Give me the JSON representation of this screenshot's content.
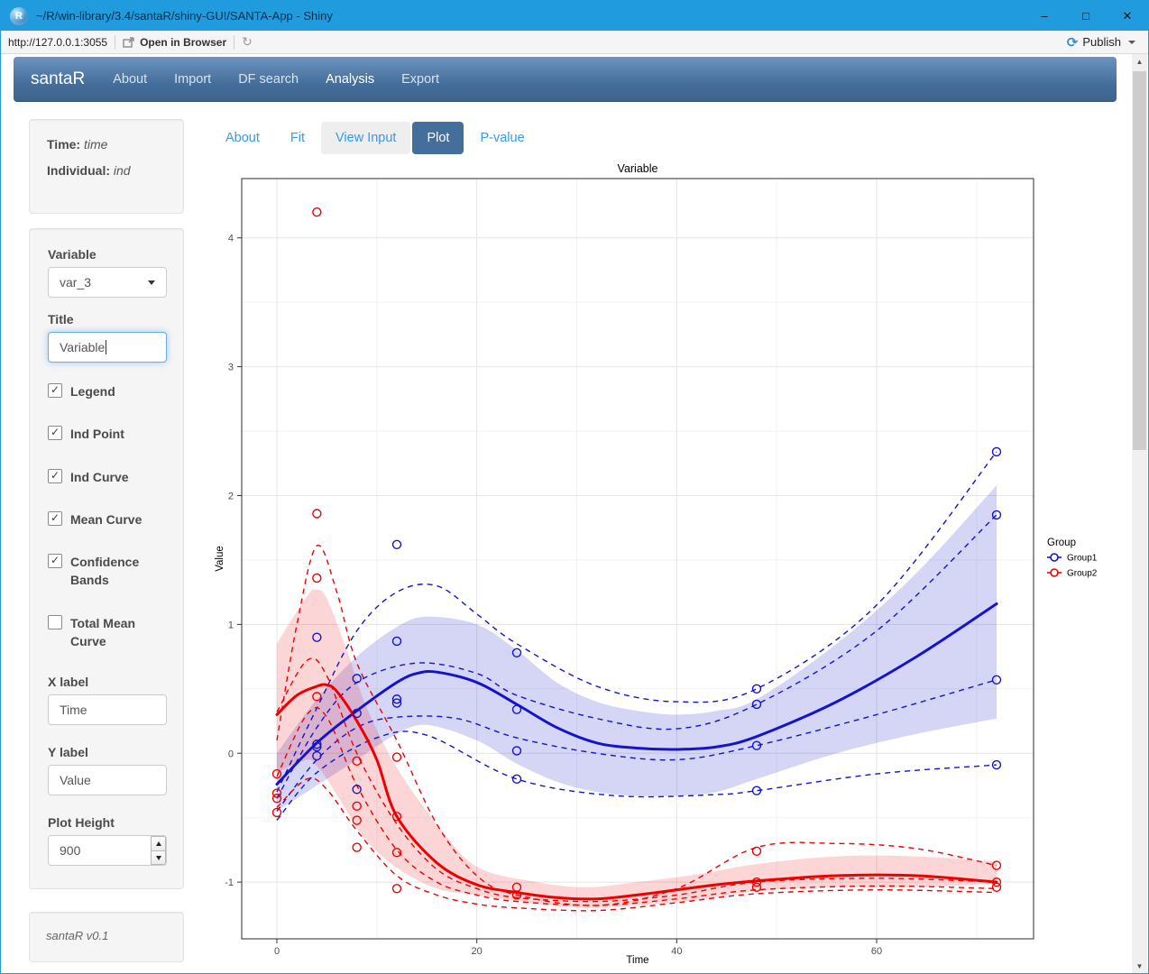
{
  "window": {
    "title": "~/R/win-library/3.4/santaR/shiny-GUI/SANTA-App - Shiny",
    "controls": {
      "minimize": "–",
      "maximize": "□",
      "close": "✕"
    }
  },
  "toolbar": {
    "url": "http://127.0.0.1:3055",
    "open_in_browser": "Open in Browser",
    "refresh_icon": "refresh-icon",
    "publish_label": "Publish"
  },
  "navbar": {
    "brand": "santaR",
    "items": [
      {
        "label": "About",
        "active": false
      },
      {
        "label": "Import",
        "active": false
      },
      {
        "label": "DF search",
        "active": false
      },
      {
        "label": "Analysis",
        "active": true
      },
      {
        "label": "Export",
        "active": false
      }
    ]
  },
  "sidebar": {
    "info": {
      "time_label": "Time:",
      "time_value": "time",
      "individual_label": "Individual:",
      "individual_value": "ind"
    },
    "variable": {
      "label": "Variable",
      "selected": "var_3"
    },
    "title_input": {
      "label": "Title",
      "value": "Variable"
    },
    "checkboxes": [
      {
        "label": "Legend",
        "checked": true
      },
      {
        "label": "Ind Point",
        "checked": true
      },
      {
        "label": "Ind Curve",
        "checked": true
      },
      {
        "label": "Mean Curve",
        "checked": true
      },
      {
        "label": "Confidence Bands",
        "checked": true
      },
      {
        "label": "Total Mean Curve",
        "checked": false
      }
    ],
    "xlabel_input": {
      "label": "X label",
      "value": "Time"
    },
    "ylabel_input": {
      "label": "Y label",
      "value": "Value"
    },
    "plot_height": {
      "label": "Plot Height",
      "value": "900"
    },
    "footer": "santaR v0.1"
  },
  "tabs": [
    {
      "label": "About",
      "active": false,
      "hover": false
    },
    {
      "label": "Fit",
      "active": false,
      "hover": false
    },
    {
      "label": "View Input",
      "active": false,
      "hover": true
    },
    {
      "label": "Plot",
      "active": true,
      "hover": false
    },
    {
      "label": "P-value",
      "active": false,
      "hover": false
    }
  ],
  "chart_data": {
    "type": "line",
    "title": "Variable",
    "xlabel": "Time",
    "ylabel": "Value",
    "xlim": [
      -3.52,
      75.7
    ],
    "ylim": [
      -1.44,
      4.46
    ],
    "xticks": [
      0,
      20,
      40,
      60
    ],
    "yticks": [
      -1,
      0,
      1,
      2,
      3,
      4
    ],
    "x_minor": [
      10,
      30,
      50,
      70
    ],
    "y_minor": [
      -0.5,
      0.5,
      1.5,
      2.5,
      3.5
    ],
    "grid": true,
    "legend": {
      "title": "Group",
      "position": "right",
      "entries": [
        {
          "label": "Group1",
          "color": "#1414cc"
        },
        {
          "label": "Group2",
          "color": "#ee0000"
        }
      ]
    },
    "groups": [
      {
        "name": "Group1",
        "color": "#1414cc",
        "band_opacity": 0.18,
        "mean": [
          [
            0,
            -0.24
          ],
          [
            4,
            0.08
          ],
          [
            8,
            0.33
          ],
          [
            12,
            0.55
          ],
          [
            14,
            0.62
          ],
          [
            16,
            0.63
          ],
          [
            20,
            0.55
          ],
          [
            24,
            0.38
          ],
          [
            28,
            0.2
          ],
          [
            32,
            0.08
          ],
          [
            36,
            0.04
          ],
          [
            40,
            0.03
          ],
          [
            44,
            0.05
          ],
          [
            48,
            0.13
          ],
          [
            56,
            0.4
          ],
          [
            64,
            0.75
          ],
          [
            72,
            1.16
          ]
        ],
        "band_upper": [
          [
            0,
            0.0
          ],
          [
            4,
            0.42
          ],
          [
            8,
            0.75
          ],
          [
            12,
            0.98
          ],
          [
            15,
            1.06
          ],
          [
            20,
            1.0
          ],
          [
            24,
            0.8
          ],
          [
            28,
            0.55
          ],
          [
            32,
            0.4
          ],
          [
            36,
            0.33
          ],
          [
            40,
            0.3
          ],
          [
            44,
            0.33
          ],
          [
            48,
            0.42
          ],
          [
            56,
            0.85
          ],
          [
            64,
            1.4
          ],
          [
            72,
            2.08
          ]
        ],
        "band_lower": [
          [
            0,
            -0.45
          ],
          [
            4,
            -0.25
          ],
          [
            8,
            -0.05
          ],
          [
            12,
            0.15
          ],
          [
            15,
            0.22
          ],
          [
            20,
            0.1
          ],
          [
            24,
            -0.08
          ],
          [
            28,
            -0.22
          ],
          [
            32,
            -0.3
          ],
          [
            36,
            -0.33
          ],
          [
            40,
            -0.33
          ],
          [
            44,
            -0.3
          ],
          [
            48,
            -0.2
          ],
          [
            56,
            0.0
          ],
          [
            64,
            0.15
          ],
          [
            72,
            0.27
          ]
        ],
        "individual_curves": [
          [
            [
              0,
              -0.3
            ],
            [
              4,
              0.35
            ],
            [
              8,
              0.95
            ],
            [
              12,
              1.25
            ],
            [
              16,
              1.3
            ],
            [
              20,
              1.08
            ],
            [
              24,
              0.85
            ],
            [
              32,
              0.52
            ],
            [
              40,
              0.4
            ],
            [
              48,
              0.5
            ],
            [
              60,
              1.15
            ],
            [
              72,
              2.34
            ]
          ],
          [
            [
              0,
              -0.35
            ],
            [
              4,
              0.2
            ],
            [
              8,
              0.55
            ],
            [
              14,
              0.7
            ],
            [
              20,
              0.62
            ],
            [
              24,
              0.45
            ],
            [
              32,
              0.27
            ],
            [
              40,
              0.19
            ],
            [
              48,
              0.38
            ],
            [
              60,
              0.95
            ],
            [
              72,
              1.85
            ]
          ],
          [
            [
              0,
              -0.45
            ],
            [
              4,
              -0.05
            ],
            [
              8,
              0.2
            ],
            [
              12,
              0.28
            ],
            [
              18,
              0.27
            ],
            [
              24,
              0.12
            ],
            [
              32,
              0.0
            ],
            [
              40,
              -0.05
            ],
            [
              48,
              0.06
            ],
            [
              60,
              0.3
            ],
            [
              72,
              0.57
            ]
          ],
          [
            [
              0,
              -0.52
            ],
            [
              4,
              -0.15
            ],
            [
              10,
              0.12
            ],
            [
              15,
              0.14
            ],
            [
              24,
              -0.2
            ],
            [
              34,
              -0.33
            ],
            [
              44,
              -0.32
            ],
            [
              48,
              -0.29
            ],
            [
              60,
              -0.16
            ],
            [
              72,
              -0.09
            ]
          ]
        ],
        "points": [
          [
            4,
            0.9
          ],
          [
            4,
            0.07
          ],
          [
            4,
            0.05
          ],
          [
            4,
            -0.02
          ],
          [
            8,
            0.58
          ],
          [
            8,
            0.31
          ],
          [
            8,
            -0.28
          ],
          [
            12,
            1.62
          ],
          [
            12,
            0.87
          ],
          [
            12,
            0.42
          ],
          [
            12,
            0.39
          ],
          [
            24,
            0.78
          ],
          [
            24,
            0.34
          ],
          [
            24,
            0.02
          ],
          [
            24,
            -0.2
          ],
          [
            48,
            0.5
          ],
          [
            48,
            0.38
          ],
          [
            48,
            0.06
          ],
          [
            48,
            -0.29
          ],
          [
            72,
            2.34
          ],
          [
            72,
            1.85
          ],
          [
            72,
            0.57
          ],
          [
            72,
            -0.09
          ]
        ]
      },
      {
        "name": "Group2",
        "color": "#ee0000",
        "band_opacity": 0.16,
        "mean": [
          [
            0,
            0.3
          ],
          [
            2,
            0.45
          ],
          [
            4,
            0.52
          ],
          [
            5,
            0.53
          ],
          [
            6,
            0.48
          ],
          [
            8,
            0.25
          ],
          [
            10,
            -0.05
          ],
          [
            12,
            -0.49
          ],
          [
            16,
            -0.85
          ],
          [
            20,
            -1.02
          ],
          [
            24,
            -1.08
          ],
          [
            28,
            -1.12
          ],
          [
            32,
            -1.13
          ],
          [
            36,
            -1.1
          ],
          [
            40,
            -1.06
          ],
          [
            44,
            -1.02
          ],
          [
            48,
            -0.99
          ],
          [
            56,
            -0.95
          ],
          [
            64,
            -0.95
          ],
          [
            72,
            -1.0
          ]
        ],
        "band_upper": [
          [
            0,
            0.85
          ],
          [
            3,
            1.22
          ],
          [
            4,
            1.27
          ],
          [
            5,
            1.2
          ],
          [
            7,
            0.8
          ],
          [
            9,
            0.35
          ],
          [
            12,
            -0.11
          ],
          [
            16,
            -0.55
          ],
          [
            20,
            -0.88
          ],
          [
            26,
            -1.0
          ],
          [
            31,
            -1.04
          ],
          [
            36,
            -1.0
          ],
          [
            42,
            -0.94
          ],
          [
            48,
            -0.86
          ],
          [
            56,
            -0.8
          ],
          [
            64,
            -0.8
          ],
          [
            72,
            -0.84
          ]
        ],
        "band_lower": [
          [
            0,
            -0.15
          ],
          [
            3,
            -0.05
          ],
          [
            4,
            -0.1
          ],
          [
            5,
            -0.2
          ],
          [
            7,
            -0.45
          ],
          [
            9,
            -0.68
          ],
          [
            12,
            -0.89
          ],
          [
            16,
            -1.05
          ],
          [
            20,
            -1.1
          ],
          [
            26,
            -1.17
          ],
          [
            31,
            -1.2
          ],
          [
            36,
            -1.18
          ],
          [
            42,
            -1.14
          ],
          [
            48,
            -1.07
          ],
          [
            56,
            -1.04
          ],
          [
            64,
            -1.04
          ],
          [
            72,
            -1.01
          ]
        ],
        "individual_curves": [
          [
            [
              0,
              0.1
            ],
            [
              2,
              1.0
            ],
            [
              4,
              1.61
            ],
            [
              6,
              1.25
            ],
            [
              8,
              0.7
            ],
            [
              12,
              0.1
            ],
            [
              16,
              -0.55
            ],
            [
              20,
              -0.95
            ],
            [
              24,
              -1.1
            ],
            [
              32,
              -1.18
            ],
            [
              40,
              -1.05
            ],
            [
              48,
              -0.73
            ],
            [
              56,
              -0.7
            ],
            [
              64,
              -0.74
            ],
            [
              72,
              -0.87
            ]
          ],
          [
            [
              0,
              0.32
            ],
            [
              3,
              0.72
            ],
            [
              5,
              0.6
            ],
            [
              8,
              0.0
            ],
            [
              12,
              -0.55
            ],
            [
              16,
              -0.9
            ],
            [
              20,
              -1.05
            ],
            [
              24,
              -1.12
            ],
            [
              32,
              -1.15
            ],
            [
              40,
              -1.1
            ],
            [
              48,
              -1.0
            ],
            [
              60,
              -0.97
            ],
            [
              72,
              -1.0
            ]
          ],
          [
            [
              0,
              -0.18
            ],
            [
              3,
              0.3
            ],
            [
              5,
              0.28
            ],
            [
              8,
              -0.25
            ],
            [
              12,
              -0.75
            ],
            [
              16,
              -1.0
            ],
            [
              20,
              -1.1
            ],
            [
              24,
              -1.15
            ],
            [
              32,
              -1.18
            ],
            [
              40,
              -1.13
            ],
            [
              48,
              -1.06
            ],
            [
              60,
              -1.03
            ],
            [
              72,
              -1.05
            ]
          ],
          [
            [
              0,
              -0.42
            ],
            [
              3,
              -0.2
            ],
            [
              5,
              -0.28
            ],
            [
              8,
              -0.6
            ],
            [
              12,
              -0.95
            ],
            [
              16,
              -1.1
            ],
            [
              20,
              -1.17
            ],
            [
              24,
              -1.2
            ],
            [
              32,
              -1.22
            ],
            [
              40,
              -1.16
            ],
            [
              48,
              -1.09
            ],
            [
              60,
              -1.06
            ],
            [
              72,
              -1.08
            ]
          ]
        ],
        "points": [
          [
            0,
            -0.16
          ],
          [
            0,
            -0.31
          ],
          [
            0,
            -0.35
          ],
          [
            0,
            -0.46
          ],
          [
            4,
            4.2
          ],
          [
            4,
            1.86
          ],
          [
            4,
            1.36
          ],
          [
            4,
            0.44
          ],
          [
            8,
            -0.06
          ],
          [
            8,
            -0.41
          ],
          [
            8,
            -0.52
          ],
          [
            8,
            -0.73
          ],
          [
            12,
            -0.03
          ],
          [
            12,
            -0.49
          ],
          [
            12,
            -0.77
          ],
          [
            12,
            -1.05
          ],
          [
            24,
            -1.04
          ],
          [
            24,
            -1.1
          ],
          [
            48,
            -0.76
          ],
          [
            48,
            -1.0
          ],
          [
            48,
            -1.04
          ],
          [
            72,
            -0.87
          ],
          [
            72,
            -1.0
          ],
          [
            72,
            -1.04
          ]
        ]
      }
    ]
  }
}
